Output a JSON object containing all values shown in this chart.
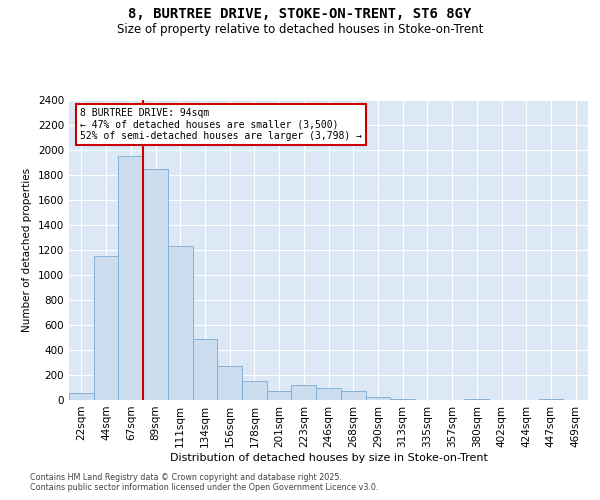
{
  "title1": "8, BURTREE DRIVE, STOKE-ON-TRENT, ST6 8GY",
  "title2": "Size of property relative to detached houses in Stoke-on-Trent",
  "xlabel": "Distribution of detached houses by size in Stoke-on-Trent",
  "ylabel": "Number of detached properties",
  "categories": [
    "22sqm",
    "44sqm",
    "67sqm",
    "89sqm",
    "111sqm",
    "134sqm",
    "156sqm",
    "178sqm",
    "201sqm",
    "223sqm",
    "246sqm",
    "268sqm",
    "290sqm",
    "313sqm",
    "335sqm",
    "357sqm",
    "380sqm",
    "402sqm",
    "424sqm",
    "447sqm",
    "469sqm"
  ],
  "values": [
    55,
    1150,
    1950,
    1850,
    1230,
    490,
    270,
    155,
    75,
    120,
    100,
    75,
    25,
    5,
    0,
    0,
    5,
    0,
    0,
    5,
    0
  ],
  "bar_color": "#ccddf0",
  "bar_edge_color": "#7aaad0",
  "vline_color": "#cc0000",
  "vline_position": 2.5,
  "ylim_max": 2400,
  "ytick_step": 200,
  "annotation_line1": "8 BURTREE DRIVE: 94sqm",
  "annotation_line2": "← 47% of detached houses are smaller (3,500)",
  "annotation_line3": "52% of semi-detached houses are larger (3,798) →",
  "bg_color": "#dce8f5",
  "grid_color": "#c0cfe0",
  "footer1": "Contains HM Land Registry data © Crown copyright and database right 2025.",
  "footer2": "Contains public sector information licensed under the Open Government Licence v3.0."
}
